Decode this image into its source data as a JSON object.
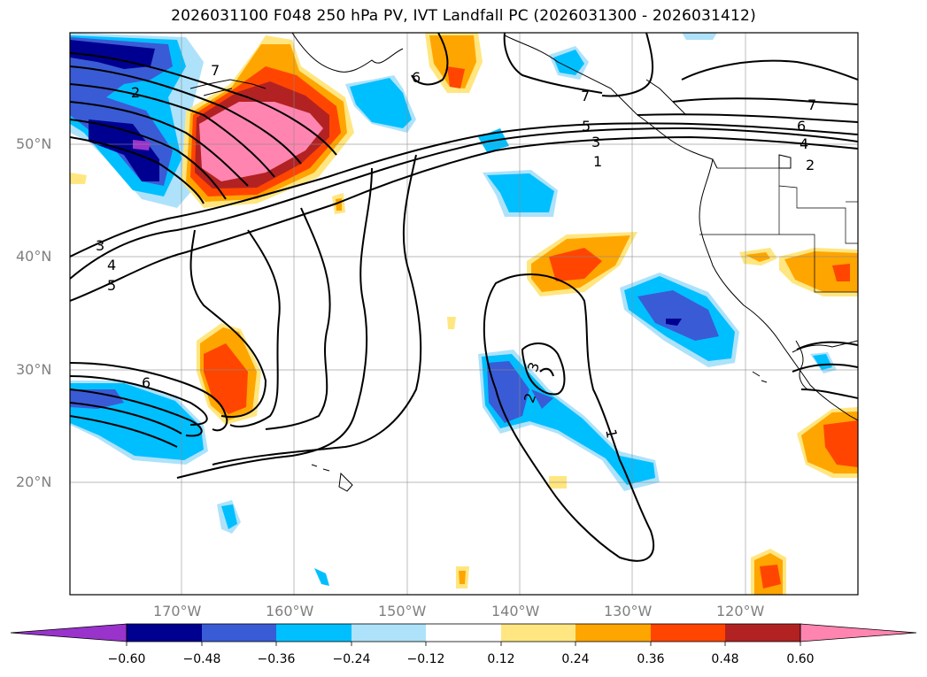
{
  "title": "2026031100 F048 250 hPa PV, IVT Landfall PC (2026031300 - 2026031412)",
  "map": {
    "lat_labels": [
      "50°N",
      "40°N",
      "30°N",
      "20°N"
    ],
    "lon_labels": [
      "170°W",
      "160°W",
      "150°W",
      "140°W",
      "130°W",
      "120°W"
    ],
    "contour_labels": [
      "7",
      "2",
      "6",
      "7",
      "5",
      "3",
      "1",
      "7",
      "6",
      "4",
      "2",
      "3",
      "4",
      "5",
      "6",
      "3",
      "2",
      "1"
    ]
  },
  "colorbar": {
    "ticks": [
      "−0.60",
      "−0.48",
      "−0.36",
      "−0.24",
      "−0.12",
      "0.12",
      "0.24",
      "0.36",
      "0.48",
      "0.60"
    ],
    "colors": [
      "#9933cc",
      "#000090",
      "#3a5bd6",
      "#00bfff",
      "#aee2fa",
      "#ffffff",
      "#ffe680",
      "#ffa500",
      "#ff4500",
      "#b22222",
      "#ff85b0"
    ]
  },
  "colors": {
    "pink": "#ff85b0",
    "darkred": "#b22222",
    "red": "#ff4500",
    "orange": "#ffa500",
    "yellow": "#ffe680",
    "lightblue": "#aee2fa",
    "cyan": "#00bfff",
    "blue": "#3a5bd6",
    "navy": "#000090"
  }
}
